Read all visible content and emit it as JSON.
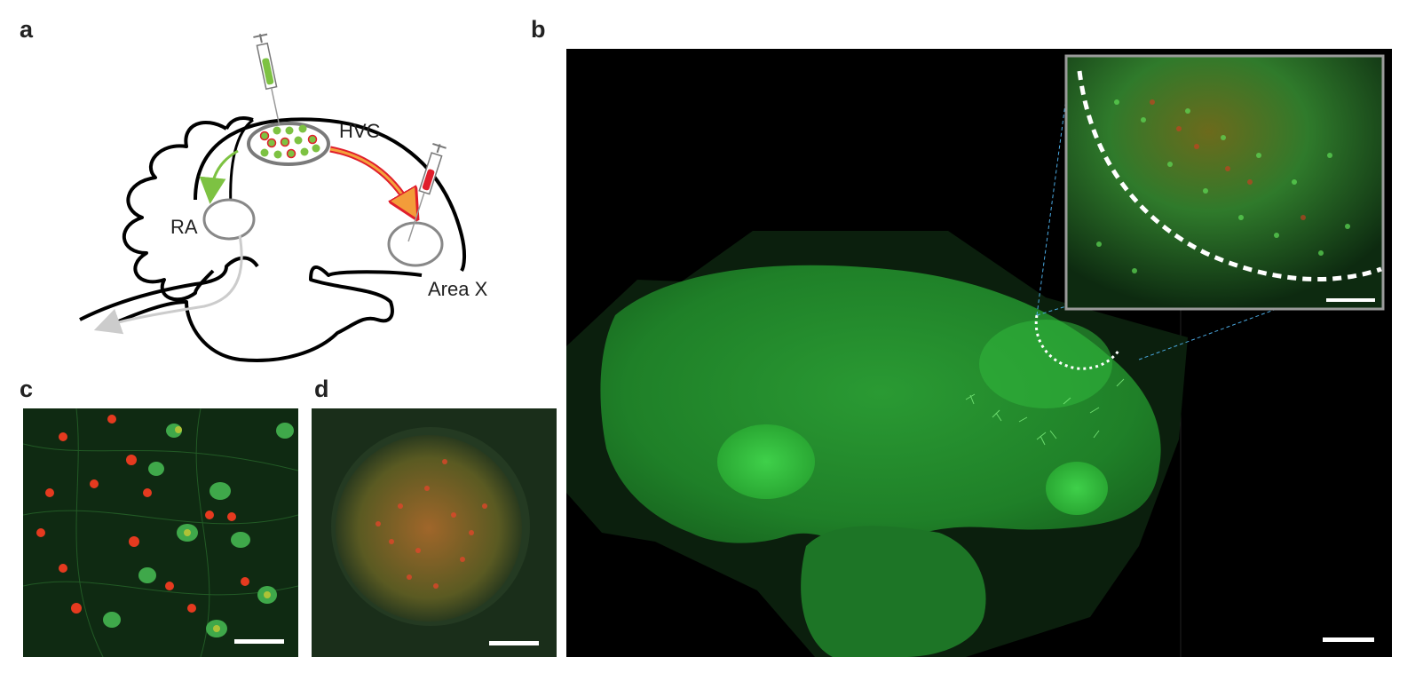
{
  "panels": {
    "a": {
      "letter": "a",
      "labels": {
        "hvc": "HVC",
        "ra": "RA",
        "areax": "Area X"
      }
    },
    "b": {
      "letter": "b"
    },
    "c": {
      "letter": "c"
    },
    "d": {
      "letter": "d"
    }
  },
  "colors": {
    "green_label": "#7dc242",
    "red_label": "#e01e2b",
    "tissue_green": "#1f8f2a",
    "background": "#000000"
  }
}
